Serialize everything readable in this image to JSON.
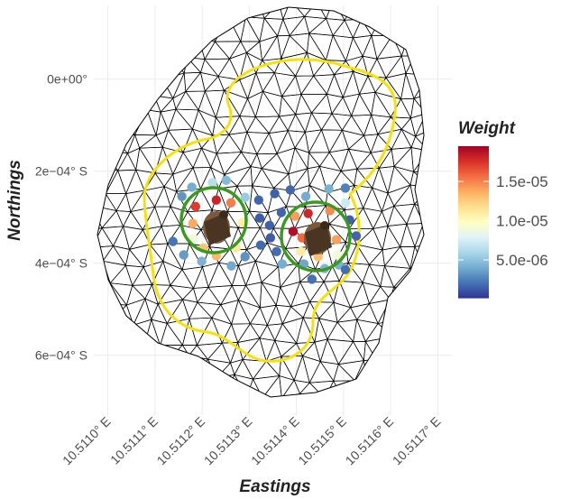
{
  "chart_data": {
    "type": "scatter",
    "x_label": "Eastings",
    "y_label": "Northings",
    "legend_title": "Weight",
    "xlim": [
      10.51097,
      10.51173
    ],
    "ylim": [
      -0.00073,
      0.00016
    ],
    "xticks": [
      {
        "value": 10.511,
        "label": "10.5110° E"
      },
      {
        "value": 10.5111,
        "label": "10.5111° E"
      },
      {
        "value": 10.5112,
        "label": "10.5112° E"
      },
      {
        "value": 10.5113,
        "label": "10.5113° E"
      },
      {
        "value": 10.5114,
        "label": "10.5114° E"
      },
      {
        "value": 10.5115,
        "label": "10.5115° E"
      },
      {
        "value": 10.5116,
        "label": "10.5116° E"
      },
      {
        "value": 10.5117,
        "label": "10.5117° E"
      }
    ],
    "yticks": [
      {
        "value": 0,
        "label": "0e+00°"
      },
      {
        "value": -0.0002,
        "label": "2e−04° S"
      },
      {
        "value": -0.0004,
        "label": "4e−04° S"
      },
      {
        "value": -0.0006,
        "label": "6e−04° S"
      }
    ],
    "grid": true,
    "color_range": [
      1.7e-07,
      1.95e-05
    ],
    "color_ticks": [
      {
        "value": 1.5e-05,
        "label": "1.5e-05"
      },
      {
        "value": 1e-05,
        "label": "1.0e-05"
      },
      {
        "value": 5e-06,
        "label": "5.0e-06"
      }
    ],
    "colormap": [
      "#313695",
      "#4575b4",
      "#74add1",
      "#abd9e9",
      "#e0f3f8",
      "#ffffbf",
      "#fee090",
      "#fdae61",
      "#f46d43",
      "#d73027",
      "#a50026"
    ],
    "x": [
      10.511157,
      10.511178,
      10.511222,
      10.511251,
      10.511291,
      10.511186,
      10.51123,
      10.511261,
      10.51118,
      10.511285,
      10.511138,
      10.511182,
      10.511203,
      10.511272,
      10.511161,
      10.511199,
      10.51123,
      10.511262,
      10.511291,
      10.51132,
      10.511354,
      10.511387,
      10.511322,
      10.511343,
      10.511368,
      10.511324,
      10.511345,
      10.511358,
      10.51142,
      10.511469,
      10.511504,
      10.511504,
      10.511397,
      10.511425,
      10.511471,
      10.511513,
      10.511393,
      10.511412,
      10.511485,
      10.511527,
      10.51137,
      10.51141,
      10.511416,
      10.511446,
      10.51149,
      10.51146,
      10.511433,
      10.511504,
      10.511487
    ],
    "y": [
      -0.000255,
      -0.000235,
      -0.000225,
      -0.00022,
      -0.000257,
      -0.000277,
      -0.000263,
      -0.000269,
      -0.000314,
      -0.000312,
      -0.000353,
      -0.000347,
      -0.000367,
      -0.000367,
      -0.000382,
      -0.000396,
      -0.000384,
      -0.000406,
      -0.000386,
      -0.000263,
      -0.000249,
      -0.000241,
      -0.000302,
      -0.000318,
      -0.00029,
      -0.000361,
      -0.000345,
      -0.000375,
      -0.000255,
      -0.000239,
      -0.000237,
      -0.000269,
      -0.000298,
      -0.000292,
      -0.000286,
      -0.000306,
      -0.000331,
      -0.000345,
      -0.000349,
      -0.000341,
      -0.000402,
      -0.000375,
      -0.000402,
      -0.000386,
      -0.000404,
      -0.000412,
      -0.000435,
      -0.000414,
      -0.000382
    ],
    "values": [
      3.2e-06,
      4.1e-06,
      6.4e-06,
      4.6e-06,
      5.3e-06,
      1.72e-05,
      1.81e-05,
      1.52e-05,
      1.38e-05,
      1.08e-05,
      2.1e-06,
      8.9e-06,
      1.29e-05,
      1.12e-05,
      3.4e-06,
      4.3e-06,
      1.33e-05,
      3.9e-06,
      3.1e-06,
      1.6e-06,
      1.5e-06,
      1.7e-06,
      1.4e-06,
      1.5e-06,
      1.6e-06,
      1.8e-06,
      1.4e-06,
      1.9e-06,
      4e-06,
      4.2e-06,
      2.5e-06,
      7.2e-06,
      1.42e-05,
      1.79e-05,
      1.48e-05,
      1.5e-06,
      1.9e-05,
      1.58e-05,
      1.41e-05,
      1.6e-06,
      4.1e-06,
      1.1e-05,
      3.8e-06,
      1.3e-05,
      4.2e-06,
      4.4e-06,
      2e-06,
      1.9e-06,
      9e-06
    ]
  }
}
